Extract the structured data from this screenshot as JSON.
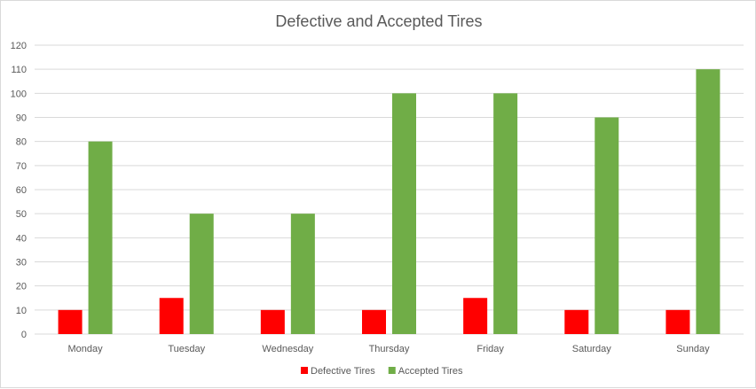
{
  "chart_data": {
    "type": "bar",
    "title": "Defective and Accepted Tires",
    "xlabel": "",
    "ylabel": "",
    "categories": [
      "Monday",
      "Tuesday",
      "Wednesday",
      "Thursday",
      "Friday",
      "Saturday",
      "Sunday"
    ],
    "series": [
      {
        "name": "Defective Tires",
        "color": "#ff0000",
        "values": [
          10,
          15,
          10,
          10,
          15,
          10,
          10
        ]
      },
      {
        "name": "Accepted Tires",
        "color": "#70ad47",
        "values": [
          80,
          50,
          50,
          100,
          100,
          90,
          110
        ]
      }
    ],
    "ylim": [
      0,
      120
    ],
    "yticks": [
      0,
      10,
      20,
      30,
      40,
      50,
      60,
      70,
      80,
      90,
      100,
      110,
      120
    ],
    "grid": true,
    "legend": "bottom"
  }
}
